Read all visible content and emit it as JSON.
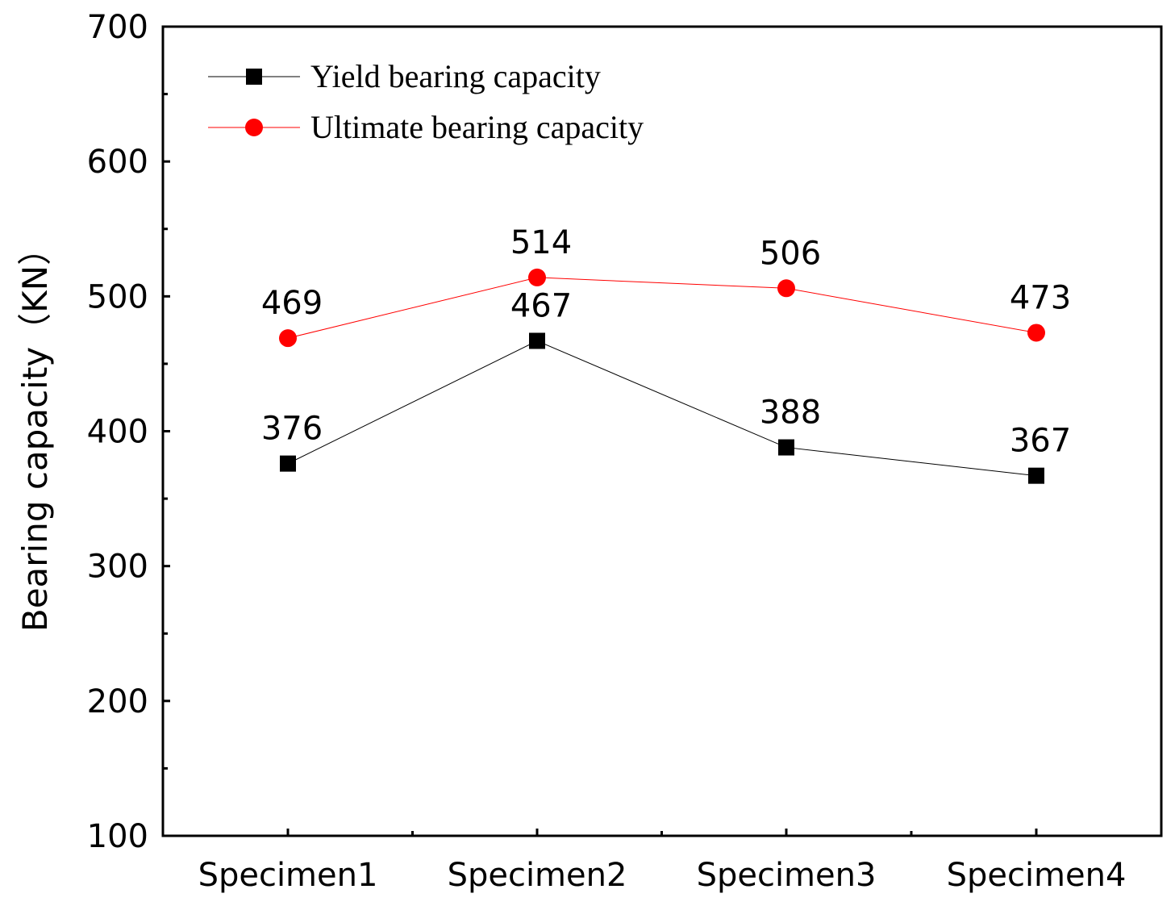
{
  "chart_data": {
    "type": "line",
    "title": "",
    "xlabel": "",
    "ylabel": "Bearing capacity（KN）",
    "categories": [
      "Specimen1",
      "Specimen2",
      "Specimen3",
      "Specimen4"
    ],
    "ylim": [
      100,
      700
    ],
    "yticks": [
      100,
      200,
      300,
      400,
      500,
      600,
      700
    ],
    "grid": false,
    "legend_position": "top-left",
    "series": [
      {
        "name": "Yield bearing capacity",
        "values": [
          376,
          467,
          388,
          367
        ],
        "color": "#000000",
        "marker": "square"
      },
      {
        "name": "Ultimate bearing capacity",
        "values": [
          469,
          514,
          506,
          473
        ],
        "color": "#ff0000",
        "marker": "circle"
      }
    ]
  }
}
